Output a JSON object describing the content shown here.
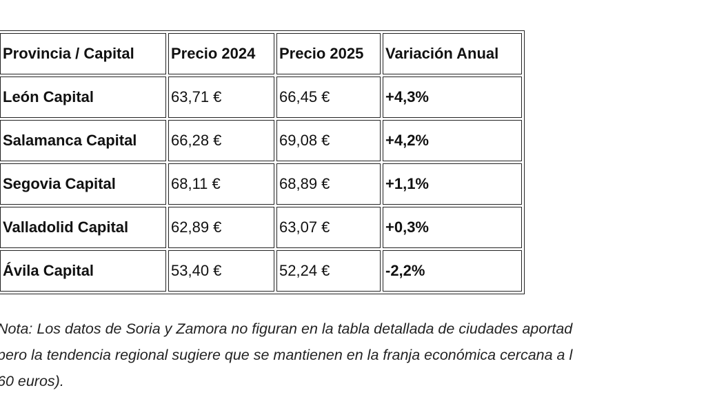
{
  "table": {
    "headers": [
      "Provincia / Capital",
      "Precio 2024",
      "Precio 2025",
      "Variación Anual"
    ],
    "rows": [
      [
        "León Capital",
        "63,71 €",
        "66,45 €",
        "+4,3%"
      ],
      [
        "Salamanca Capital",
        "66,28 €",
        "69,08 €",
        "+4,2%"
      ],
      [
        "Segovia Capital",
        "68,11 €",
        "68,89 €",
        "+1,1%"
      ],
      [
        "Valladolid Capital",
        "62,89 €",
        "63,07 €",
        "+0,3%"
      ],
      [
        "Ávila Capital",
        "53,40 €",
        "52,24 €",
        "-2,2%"
      ]
    ]
  },
  "note": {
    "lines": [
      "Nota: Los datos de Soria y Zamora no figuran en la tabla detallada de ciudades aportad",
      "pero la tendencia regional sugiere que se mantienen en la franja económica cercana a l",
      "60 euros)."
    ]
  }
}
